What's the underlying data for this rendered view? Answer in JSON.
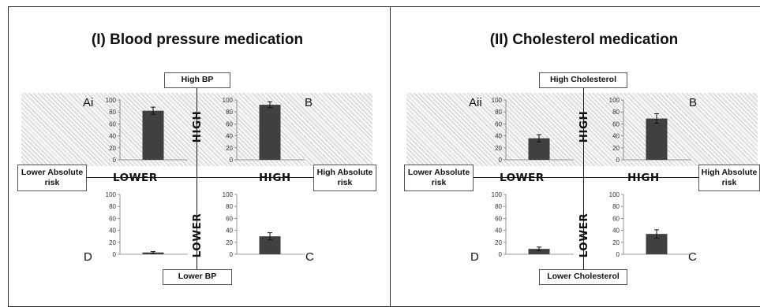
{
  "colors": {
    "bar": "#404040",
    "axis": "#1a1a1a",
    "hatch": "#cfcfcf",
    "border": "#2a2a2a"
  },
  "panels": [
    {
      "title": "(I) Blood pressure medication",
      "top_label": "High BP",
      "bottom_label": "Lower BP",
      "left_label": "Lower Absolute risk",
      "right_label": "High Absolute risk",
      "lower_word": "LOWER",
      "high_word": "HIGH",
      "vert_high_word": "HIGH",
      "vert_lower_word": "LOWER"
    },
    {
      "title": "(II) Cholesterol medication",
      "top_label": "High Cholesterol",
      "bottom_label": "Lower Cholesterol",
      "left_label": "Lower Absolute risk",
      "right_label": "High Absolute risk",
      "lower_word": "LOWER",
      "high_word": "HIGH",
      "vert_high_word": "HIGH",
      "vert_lower_word": "LOWER"
    }
  ],
  "chart_data": [
    {
      "type": "bar",
      "panel": "(I) Blood pressure medication",
      "quadrant": "Ai",
      "label": "Ai",
      "ylim": [
        0,
        100
      ],
      "yticks": [
        0,
        20,
        40,
        60,
        80,
        100
      ],
      "values": [
        82
      ],
      "error": [
        6
      ]
    },
    {
      "type": "bar",
      "panel": "(I) Blood pressure medication",
      "quadrant": "B",
      "label": "B",
      "ylim": [
        0,
        100
      ],
      "yticks": [
        0,
        20,
        40,
        60,
        80,
        100
      ],
      "values": [
        92
      ],
      "error": [
        5
      ]
    },
    {
      "type": "bar",
      "panel": "(I) Blood pressure medication",
      "quadrant": "D",
      "label": "D",
      "ylim": [
        0,
        100
      ],
      "yticks": [
        0,
        20,
        40,
        60,
        80,
        100
      ],
      "values": [
        3
      ],
      "error": [
        1.5
      ]
    },
    {
      "type": "bar",
      "panel": "(I) Blood pressure medication",
      "quadrant": "C",
      "label": "C",
      "ylim": [
        0,
        100
      ],
      "yticks": [
        0,
        20,
        40,
        60,
        80,
        100
      ],
      "values": [
        30
      ],
      "error": [
        6
      ]
    },
    {
      "type": "bar",
      "panel": "(II) Cholesterol medication",
      "quadrant": "Aii",
      "label": "Aii",
      "ylim": [
        0,
        100
      ],
      "yticks": [
        0,
        20,
        40,
        60,
        80,
        100
      ],
      "values": [
        36
      ],
      "error": [
        6
      ]
    },
    {
      "type": "bar",
      "panel": "(II) Cholesterol medication",
      "quadrant": "B",
      "label": "B",
      "ylim": [
        0,
        100
      ],
      "yticks": [
        0,
        20,
        40,
        60,
        80,
        100
      ],
      "values": [
        69
      ],
      "error": [
        8
      ]
    },
    {
      "type": "bar",
      "panel": "(II) Cholesterol medication",
      "quadrant": "D",
      "label": "D",
      "ylim": [
        0,
        100
      ],
      "yticks": [
        0,
        20,
        40,
        60,
        80,
        100
      ],
      "values": [
        9
      ],
      "error": [
        3
      ]
    },
    {
      "type": "bar",
      "panel": "(II) Cholesterol medication",
      "quadrant": "C",
      "label": "C",
      "ylim": [
        0,
        100
      ],
      "yticks": [
        0,
        20,
        40,
        60,
        80,
        100
      ],
      "values": [
        34
      ],
      "error": [
        7
      ]
    }
  ]
}
